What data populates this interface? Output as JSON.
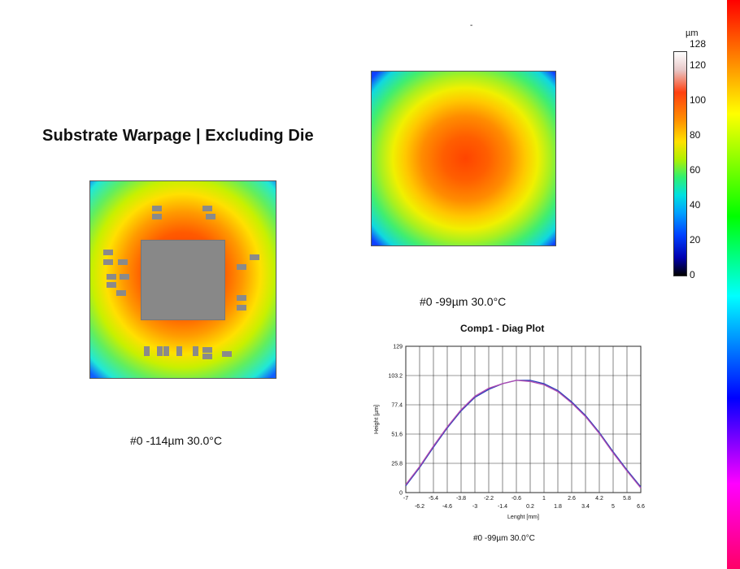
{
  "slide": {
    "title": "Substrate Warpage | Excluding Die",
    "top_mark": "-"
  },
  "maps": {
    "left_caption": "#0 -114µm 30.0°C",
    "right_caption": "#0 -99µm 30.0°C"
  },
  "colorbar": {
    "unit": "µm",
    "max_label": "128",
    "ticks": [
      "120",
      "100",
      "80",
      "60",
      "40",
      "20",
      "0"
    ]
  },
  "plot": {
    "caption": "#0 -99µm 30.0°C"
  },
  "chart_data": {
    "type": "line",
    "title": "Comp1 - Diag Plot",
    "xlabel": "Lenght [mm]",
    "ylabel": "Height [µm]",
    "xlim": [
      -7,
      6.6
    ],
    "ylim": [
      0,
      129
    ],
    "x_ticks_upper": [
      "-7",
      "-5.4",
      "-3.8",
      "-2.2",
      "-0.6",
      "1",
      "2.6",
      "4.2",
      "5.8"
    ],
    "x_ticks_lower": [
      "-6.2",
      "-4.6",
      "-3",
      "-1.4",
      "0.2",
      "1.8",
      "3.4",
      "5",
      "6.6"
    ],
    "y_ticks": [
      "0",
      "25.8",
      "51.6",
      "77.4",
      "103.2",
      "129"
    ],
    "grid": true,
    "series": [
      {
        "color": "#2a3fb8",
        "x": [
          -7,
          -6.2,
          -5.4,
          -4.6,
          -3.8,
          -3.0,
          -2.2,
          -1.4,
          -0.6,
          0.2,
          1.0,
          1.8,
          2.6,
          3.4,
          4.2,
          5.0,
          5.8,
          6.6
        ],
        "y": [
          6,
          22,
          40,
          57,
          72,
          84,
          91,
          96,
          99,
          99,
          96,
          90,
          80,
          68,
          53,
          36,
          20,
          5
        ]
      },
      {
        "color": "#b04ab0",
        "x": [
          -7,
          -6.2,
          -5.4,
          -4.6,
          -3.8,
          -3.0,
          -2.2,
          -1.4,
          -0.6,
          0.2,
          1.0,
          1.8,
          2.6,
          3.4,
          4.2,
          5.0,
          5.8,
          6.6
        ],
        "y": [
          7,
          23,
          41,
          58,
          73,
          85,
          92,
          96,
          99,
          98,
          95,
          89,
          79,
          67,
          52,
          35,
          19,
          4
        ]
      }
    ]
  }
}
